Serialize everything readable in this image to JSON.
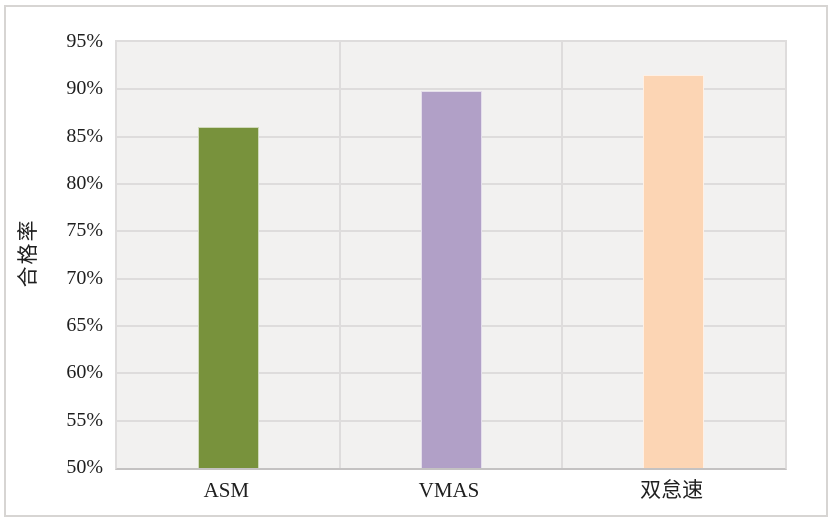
{
  "chart_data": {
    "type": "bar",
    "title": "",
    "xlabel": "",
    "ylabel": "合格率",
    "categories": [
      "ASM",
      "VMAS",
      "双怠速"
    ],
    "values": [
      86,
      89.8,
      91.5
    ],
    "unit": "%",
    "ylim": [
      50,
      95
    ],
    "ytick_step": 5,
    "ytick_labels": [
      "50%",
      "55%",
      "60%",
      "65%",
      "70%",
      "75%",
      "80%",
      "85%",
      "90%",
      "95%"
    ],
    "grid": true,
    "legend": "none",
    "bar_colors": [
      "#78923C",
      "#B1A0C7",
      "#FCD5B4"
    ]
  },
  "colors": {
    "plot_background": "#f2f1f0",
    "gridline": "#dedcdc",
    "axis_line": "#c4c2c2",
    "frame_border": "#d7d5d3",
    "text": "#1f1f1f"
  }
}
